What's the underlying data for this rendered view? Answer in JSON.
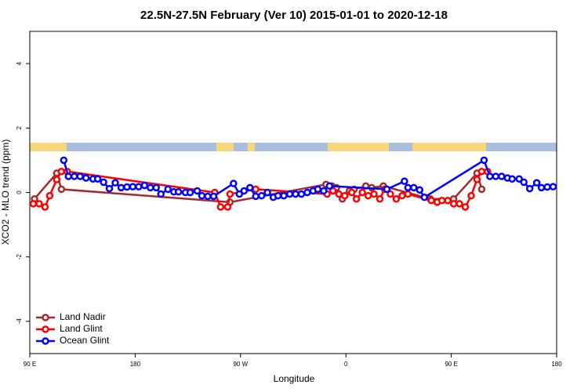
{
  "chart_data": {
    "type": "line",
    "title": "22.5N-27.5N February (Ver 10)   2015-01-01 to 2020-12-18",
    "x_label": "Longitude",
    "y_label": "XCO2 - MLO trend (ppm)",
    "xlim": [
      90,
      540
    ],
    "xticks": [
      {
        "value": 90,
        "label": "90 E"
      },
      {
        "value": 180,
        "label": "180"
      },
      {
        "value": 270,
        "label": "90 W"
      },
      {
        "value": 360,
        "label": "0"
      },
      {
        "value": 450,
        "label": "90 E"
      },
      {
        "value": 540,
        "label": "180"
      }
    ],
    "ylim": [
      -5,
      5
    ],
    "yticks": [
      -4,
      -2,
      0,
      2,
      4
    ],
    "legend": "bottom-left",
    "series": [
      {
        "name": "Land Nadir",
        "color": "#a52a2a",
        "x": [
          94,
          113,
          117,
          261,
          343,
          348,
          352,
          357,
          363,
          367,
          377,
          382,
          392,
          432,
          452,
          472,
          476
        ],
        "values": [
          -0.2,
          0.6,
          0.1,
          -0.3,
          0.25,
          0.2,
          0.15,
          -0.2,
          0.05,
          0.1,
          0.2,
          0.15,
          0.2,
          -0.2,
          -0.2,
          0.6,
          0.1
        ]
      },
      {
        "name": "Land Glint",
        "color": "#ff0000",
        "x": [
          93,
          98,
          103,
          107,
          113,
          117,
          122,
          248,
          253,
          259,
          261,
          283,
          344,
          349,
          354,
          359,
          365,
          369,
          374,
          379,
          384,
          389,
          393,
          398,
          403,
          408,
          413,
          433,
          438,
          442,
          447,
          452,
          457,
          462,
          467,
          472,
          476,
          481
        ],
        "values": [
          -0.35,
          -0.35,
          -0.45,
          -0.1,
          0.4,
          0.65,
          0.65,
          0,
          -0.45,
          -0.45,
          -0.05,
          0.1,
          -0.05,
          0.05,
          -0.05,
          -0.1,
          0,
          -0.2,
          0,
          -0.1,
          -0.05,
          -0.2,
          0.1,
          -0.05,
          -0.2,
          -0.1,
          -0.05,
          -0.25,
          -0.3,
          -0.25,
          -0.25,
          -0.35,
          -0.35,
          -0.45,
          -0.1,
          0.4,
          0.65,
          0.65
        ]
      },
      {
        "name": "Ocean Glint",
        "color": "#0000ff",
        "x": [
          119,
          123,
          128,
          133,
          138,
          144,
          148,
          153,
          158,
          163,
          168,
          173,
          178,
          183,
          188,
          193,
          198,
          202,
          208,
          213,
          217,
          223,
          227,
          233,
          237,
          242,
          247,
          264,
          269,
          273,
          278,
          283,
          288,
          293,
          298,
          302,
          307,
          312,
          317,
          322,
          327,
          332,
          336,
          341,
          346,
          395,
          410,
          413,
          418,
          423,
          427,
          478,
          483,
          488,
          493,
          498,
          502,
          508,
          512,
          517,
          523,
          527,
          532,
          537
        ],
        "values": [
          1.0,
          0.5,
          0.5,
          0.5,
          0.45,
          0.42,
          0.42,
          0.32,
          0.12,
          0.3,
          0.15,
          0.17,
          0.18,
          0.18,
          0.22,
          0.15,
          0.15,
          -0.05,
          0.1,
          0.02,
          0.02,
          0,
          0,
          0.05,
          -0.1,
          -0.12,
          -0.12,
          0.28,
          -0.05,
          0.05,
          0.15,
          -0.12,
          -0.1,
          0,
          -0.15,
          -0.1,
          -0.1,
          -0.05,
          -0.05,
          -0.05,
          0,
          0.05,
          0.1,
          0.05,
          0.2,
          0.1,
          0.35,
          0.15,
          0.15,
          0.08,
          -0.15,
          1.0,
          0.5,
          0.5,
          0.5,
          0.45,
          0.42,
          0.42,
          0.32,
          0.12,
          0.3,
          0.15,
          0.17,
          0.18
        ]
      }
    ]
  }
}
